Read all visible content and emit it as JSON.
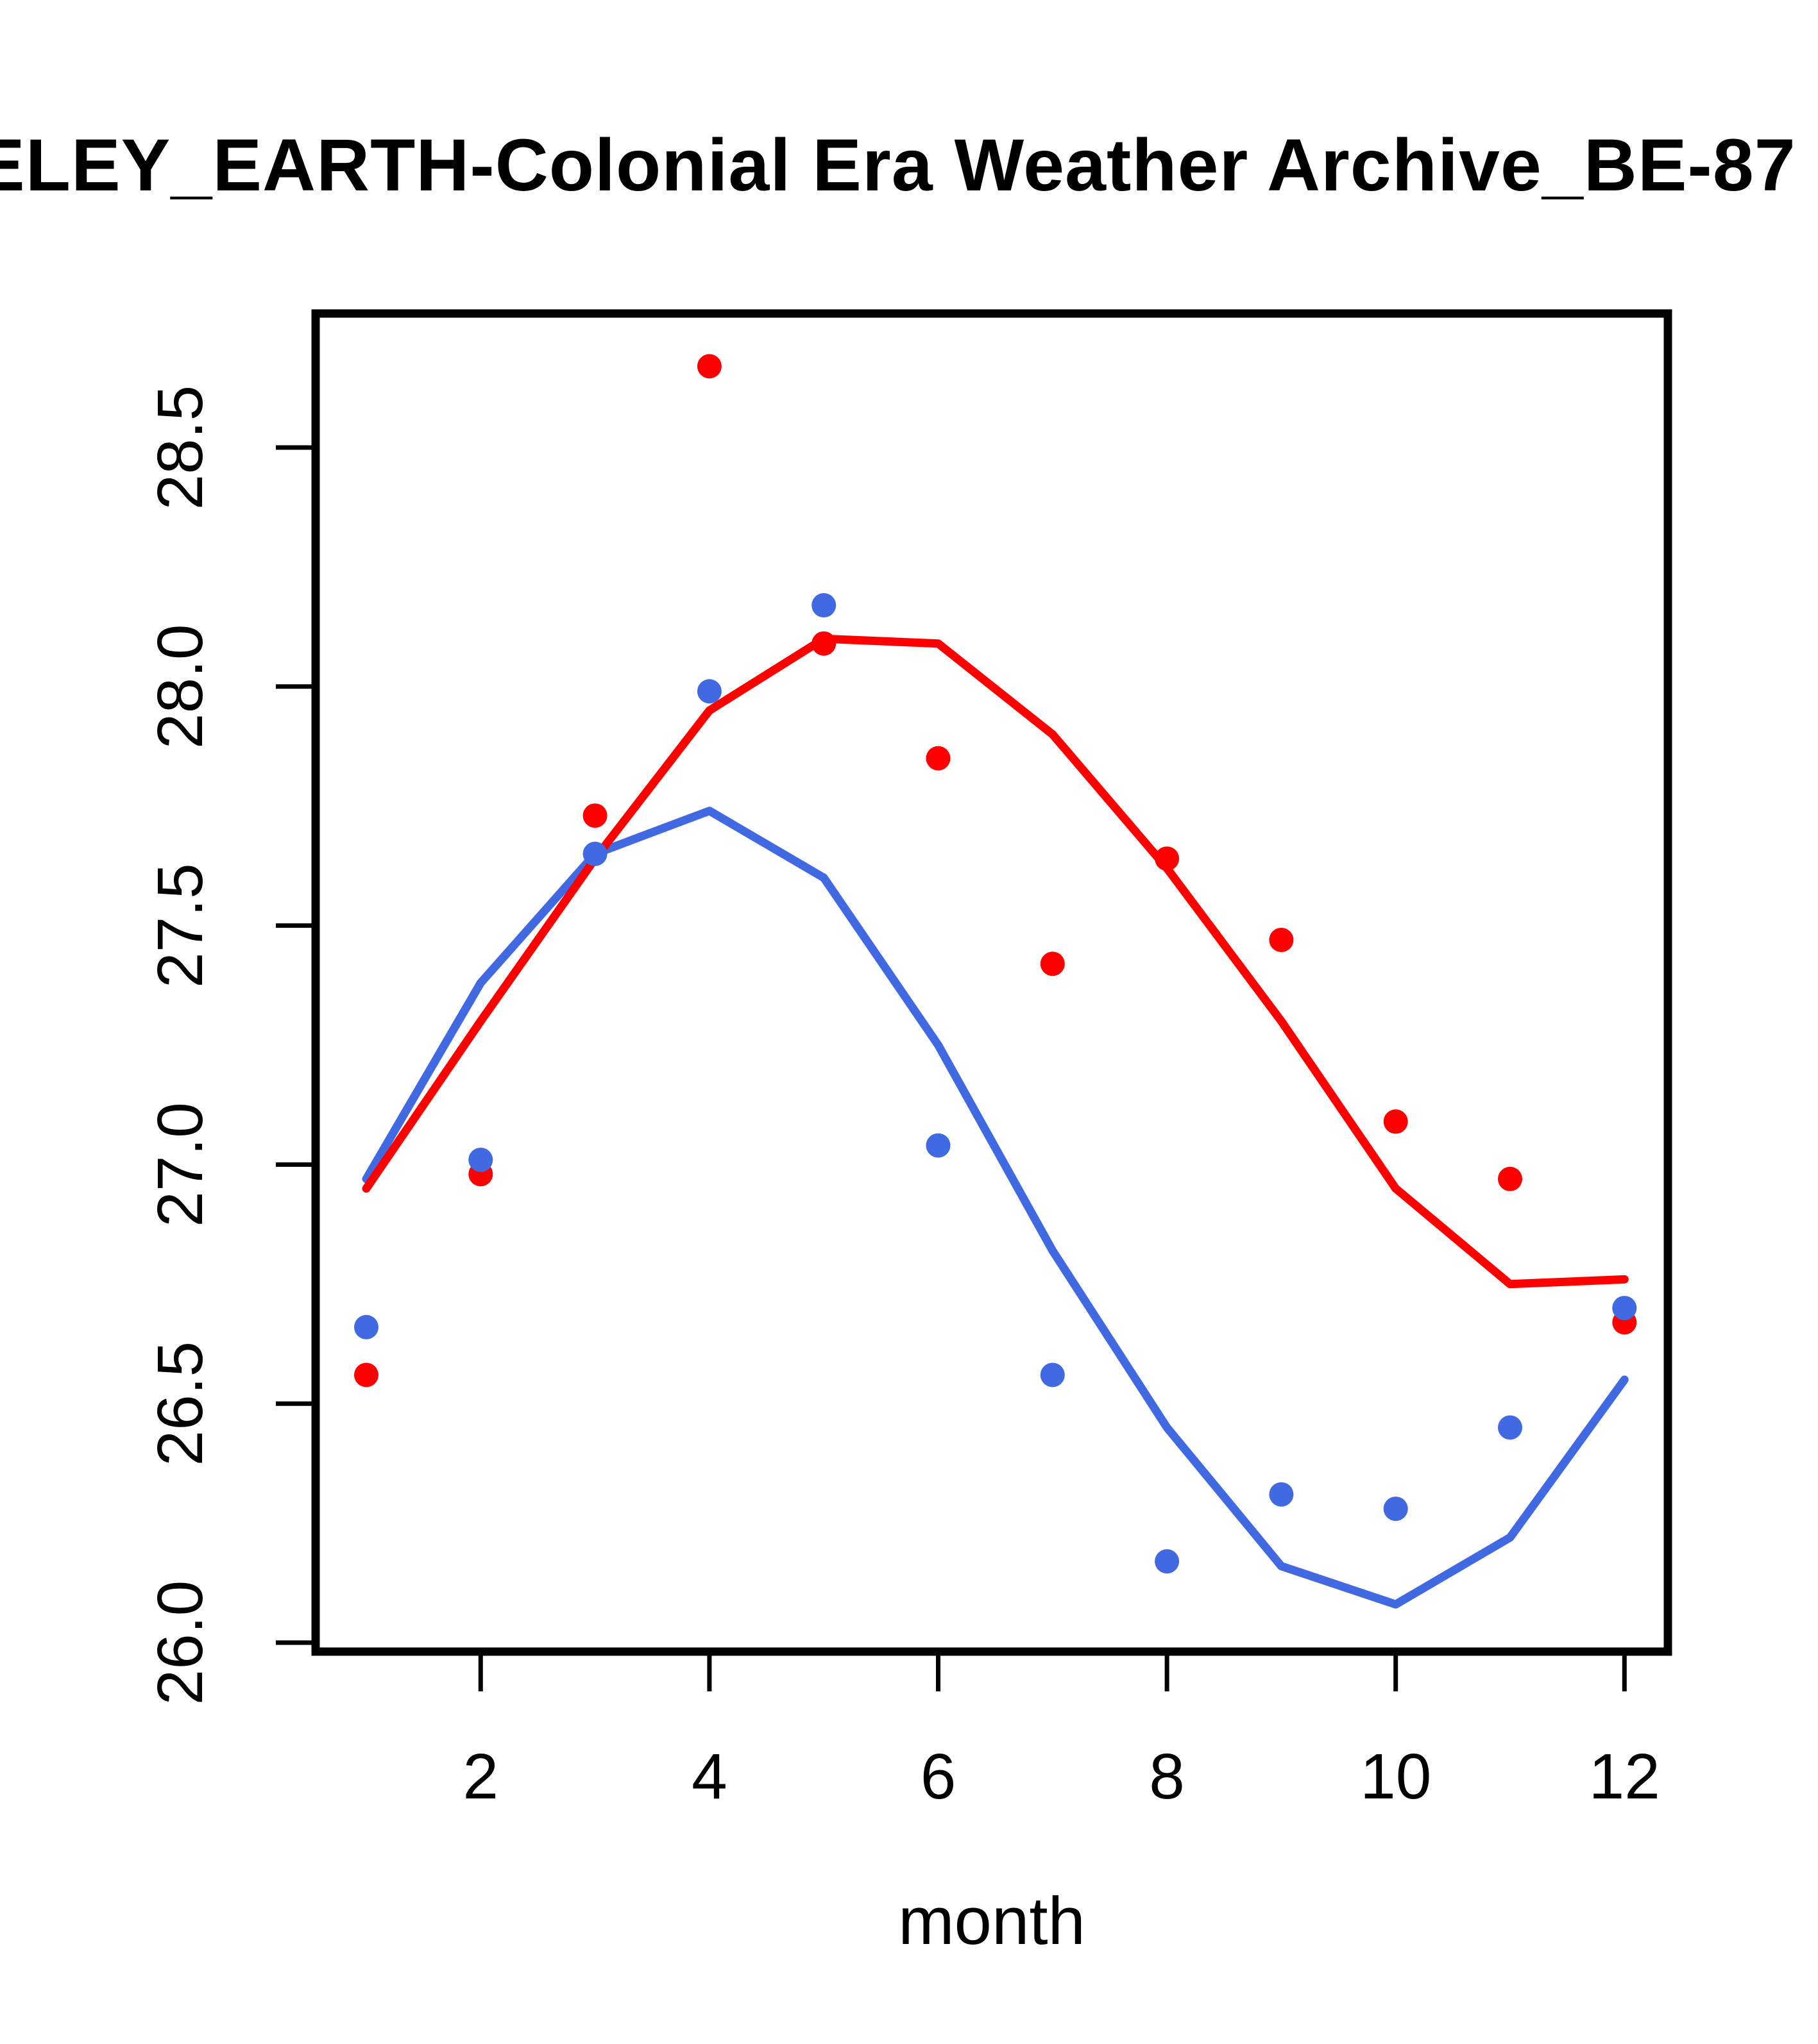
{
  "chart_data": {
    "type": "scatter",
    "title": "ELEY_EARTH-Colonial Era Weather Archive_BE-87",
    "xlabel": "month",
    "ylabel": "",
    "x": [
      1,
      2,
      3,
      4,
      5,
      6,
      7,
      8,
      9,
      10,
      11,
      12
    ],
    "x_ticks": [
      "2",
      "4",
      "6",
      "8",
      "10",
      "12"
    ],
    "y_ticks": [
      "26.0",
      "26.5",
      "27.0",
      "27.5",
      "28.0",
      "28.5"
    ],
    "xlim": [
      0.56,
      12.4
    ],
    "ylim": [
      26.0,
      28.8
    ],
    "grid": false,
    "legend_position": "none",
    "colors": {
      "red": "#FF0000",
      "blue": "#4169E1",
      "axis": "#000000"
    },
    "series": [
      {
        "name": "blue-fit-line",
        "type": "line",
        "color": "#4169E1",
        "values": [
          26.97,
          27.38,
          27.65,
          27.74,
          27.6,
          27.25,
          26.82,
          26.45,
          26.16,
          26.08,
          26.22,
          26.55
        ]
      },
      {
        "name": "red-fit-line",
        "type": "line",
        "color": "#FF0000",
        "values": [
          26.95,
          27.3,
          27.64,
          27.95,
          28.1,
          28.09,
          27.9,
          27.62,
          27.3,
          26.95,
          26.75,
          26.76
        ]
      },
      {
        "name": "red-monthly-points",
        "type": "scatter",
        "color": "#FF0000",
        "values": [
          26.56,
          26.98,
          27.73,
          28.67,
          28.09,
          27.85,
          27.42,
          27.64,
          27.47,
          27.09,
          26.97,
          26.67
        ]
      },
      {
        "name": "blue-monthly-points",
        "type": "scatter",
        "color": "#4169E1",
        "values": [
          26.66,
          27.01,
          27.65,
          27.99,
          28.17,
          27.04,
          26.56,
          26.17,
          26.31,
          26.28,
          26.45,
          26.7
        ]
      }
    ]
  }
}
